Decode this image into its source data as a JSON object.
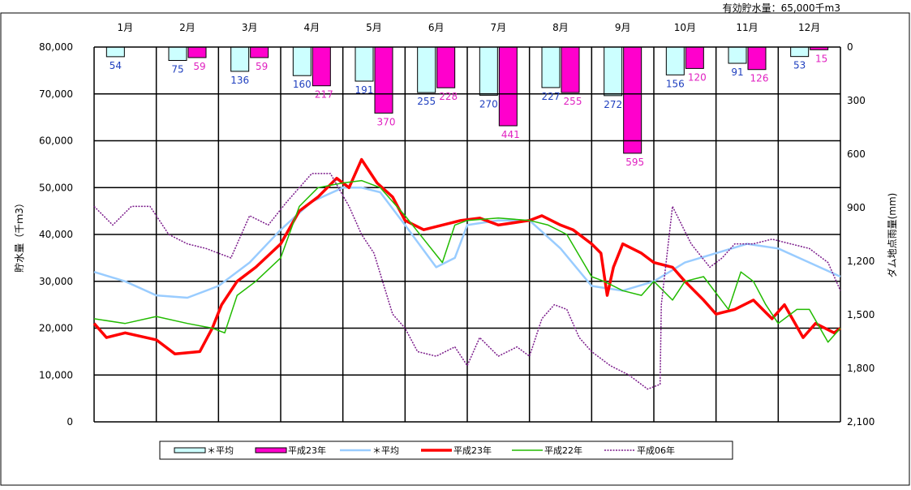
{
  "chart_data": {
    "type": "line",
    "note": "有効貯水量：65,000千m3",
    "ylabel_left": "貯水量（千ｍ3）",
    "ylabel_right": "ダム地点雨量(mm)",
    "y_left_range": [
      0,
      80000
    ],
    "y_left_ticks": [
      "0",
      "10,000",
      "20,000",
      "30,000",
      "40,000",
      "50,000",
      "60,000",
      "70,000",
      "80,000"
    ],
    "y_right_range": [
      0,
      2100
    ],
    "y_right_inverted": true,
    "y_right_ticks": [
      "0",
      "300",
      "600",
      "900",
      "1,200",
      "1,500",
      "1,800",
      "2,100"
    ],
    "months": [
      "1月",
      "2月",
      "3月",
      "4月",
      "5月",
      "6月",
      "7月",
      "8月",
      "9月",
      "10月",
      "11月",
      "12月"
    ],
    "grid": true,
    "legend_position": "bottom",
    "legend": [
      "＊平均",
      "平成23年",
      "＊平均",
      "平成23年",
      "平成22年",
      "平成06年"
    ],
    "bars": [
      {
        "name": "＊平均",
        "axis": "right",
        "color": "#ccffff",
        "label_color": "#1f3fbf",
        "values": [
          54,
          75,
          136,
          160,
          191,
          255,
          270,
          227,
          272,
          156,
          91,
          53
        ]
      },
      {
        "name": "平成23年",
        "axis": "right",
        "color": "#ff00cc",
        "label_color": "#e020c0",
        "values": [
          null,
          59,
          59,
          217,
          370,
          228,
          441,
          255,
          595,
          120,
          126,
          15
        ]
      }
    ],
    "lines": [
      {
        "name": "＊平均",
        "axis": "left",
        "color": "#99ccff",
        "width": 2.5,
        "dash": "",
        "x": [
          0,
          0.5,
          1,
          1.5,
          2,
          2.5,
          3,
          3.5,
          4,
          4.3,
          4.6,
          5,
          5.5,
          5.8,
          6,
          6.5,
          7,
          7.5,
          8,
          8.5,
          9,
          9.5,
          10,
          10.5,
          11,
          11.5,
          12
        ],
        "y": [
          32000,
          30000,
          27000,
          26500,
          29000,
          34000,
          41000,
          47000,
          50000,
          50000,
          49000,
          42000,
          33000,
          35000,
          42000,
          43000,
          43000,
          37000,
          29000,
          28000,
          30000,
          34000,
          36000,
          38000,
          37000,
          34000,
          31000
        ]
      },
      {
        "name": "平成23年",
        "axis": "left",
        "color": "#ff0000",
        "width": 3.5,
        "dash": "",
        "x": [
          0,
          0.2,
          0.5,
          1,
          1.3,
          1.7,
          1.9,
          2.05,
          2.3,
          2.6,
          3,
          3.3,
          3.6,
          3.9,
          4.1,
          4.3,
          4.55,
          4.8,
          5,
          5.3,
          5.6,
          5.9,
          6.2,
          6.5,
          7,
          7.2,
          7.5,
          7.7,
          8,
          8.15,
          8.25,
          8.35,
          8.5,
          8.65,
          8.8,
          9,
          9.3,
          9.5,
          9.8,
          10,
          10.3,
          10.6,
          10.9,
          11.1,
          11.4,
          11.6,
          11.9,
          12
        ],
        "y": [
          21000,
          18000,
          19000,
          17500,
          14500,
          15000,
          20000,
          25000,
          30000,
          33000,
          38000,
          45000,
          48000,
          52000,
          50000,
          56000,
          51000,
          48000,
          43000,
          41000,
          42000,
          43000,
          43500,
          42000,
          43000,
          44000,
          42000,
          41000,
          38000,
          36000,
          27000,
          33000,
          38000,
          37000,
          36000,
          34000,
          33000,
          30000,
          26000,
          23000,
          24000,
          26000,
          22000,
          25000,
          18000,
          21000,
          19000,
          20000
        ]
      },
      {
        "name": "平成22年",
        "axis": "left",
        "color": "#22bb00",
        "width": 1.5,
        "dash": "",
        "x": [
          0,
          0.5,
          1,
          1.5,
          1.9,
          2.1,
          2.3,
          2.6,
          3,
          3.3,
          3.6,
          4,
          4.3,
          4.6,
          5,
          5.3,
          5.6,
          5.8,
          6,
          6.5,
          7,
          7.3,
          7.6,
          8,
          8.2,
          8.5,
          8.8,
          9,
          9.3,
          9.5,
          9.8,
          10.2,
          10.4,
          10.6,
          10.8,
          11,
          11.3,
          11.5,
          11.8,
          12
        ],
        "y": [
          22000,
          21000,
          22500,
          21000,
          20000,
          19000,
          27000,
          30000,
          35000,
          46000,
          50000,
          51000,
          51500,
          50000,
          44000,
          39000,
          34000,
          42000,
          43000,
          43500,
          43000,
          42000,
          40000,
          31000,
          30000,
          28000,
          27000,
          30000,
          26000,
          30000,
          31000,
          24000,
          32000,
          30000,
          25000,
          21000,
          24000,
          24000,
          17000,
          20000
        ]
      },
      {
        "name": "平成06年",
        "axis": "left",
        "color": "#7a1a8a",
        "width": 1.5,
        "dash": "2,1.5",
        "x": [
          0,
          0.3,
          0.6,
          0.9,
          1.2,
          1.5,
          1.8,
          2.2,
          2.5,
          2.8,
          3.1,
          3.5,
          3.8,
          4.1,
          4.3,
          4.5,
          4.8,
          5.0,
          5.2,
          5.5,
          5.8,
          6,
          6.2,
          6.5,
          6.8,
          7,
          7.2,
          7.4,
          7.6,
          7.8,
          8,
          8.3,
          8.6,
          8.9,
          9.1,
          9.12,
          9.3,
          9.6,
          9.9,
          10.1,
          10.3,
          10.6,
          10.9,
          11.2,
          11.5,
          11.8,
          12
        ],
        "y": [
          46000,
          42000,
          46000,
          46000,
          40000,
          38000,
          37000,
          35000,
          44000,
          42000,
          47000,
          53000,
          53000,
          46000,
          40000,
          36000,
          23000,
          20000,
          15000,
          14000,
          16000,
          12000,
          18000,
          14000,
          16000,
          14000,
          22000,
          25000,
          24000,
          18000,
          15000,
          12000,
          10000,
          7000,
          8000,
          25000,
          46000,
          38000,
          33000,
          35000,
          38000,
          38000,
          39000,
          38000,
          37000,
          34000,
          28000
        ]
      }
    ]
  }
}
